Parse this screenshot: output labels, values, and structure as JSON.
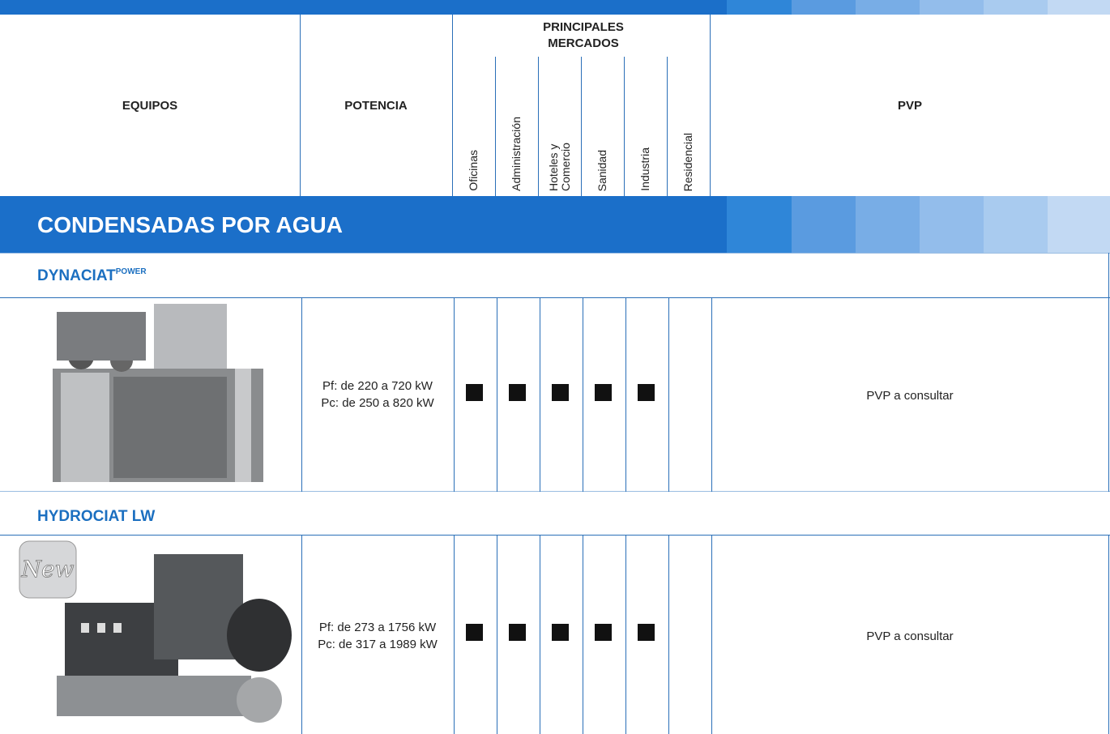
{
  "header": {
    "equipos": "EQUIPOS",
    "potencia": "POTENCIA",
    "mercados": "PRINCIPALES MERCADOS",
    "markets": [
      "Oficinas",
      "Administración",
      "Hoteles y Comercio",
      "Sanidad",
      "Industria",
      "Residencial"
    ],
    "pvp": "PVP"
  },
  "section": {
    "title": "CONDENSADAS POR AGUA"
  },
  "products": [
    {
      "name": "DYNACIAT",
      "name_sup": "POWER",
      "potencia": [
        "Pf: de 220 a 720 kW",
        "Pc: de 250 a 820 kW"
      ],
      "markets": [
        true,
        true,
        true,
        true,
        true,
        false
      ],
      "pvp": "PVP a consultar"
    },
    {
      "name": "HYDROCIAT LW",
      "badge": "New",
      "potencia": [
        "Pf: de 273 a 1756 kW",
        "Pc: de 317 a 1989 kW"
      ],
      "markets": [
        true,
        true,
        true,
        true,
        true,
        false
      ],
      "pvp": "PVP a consultar"
    }
  ]
}
